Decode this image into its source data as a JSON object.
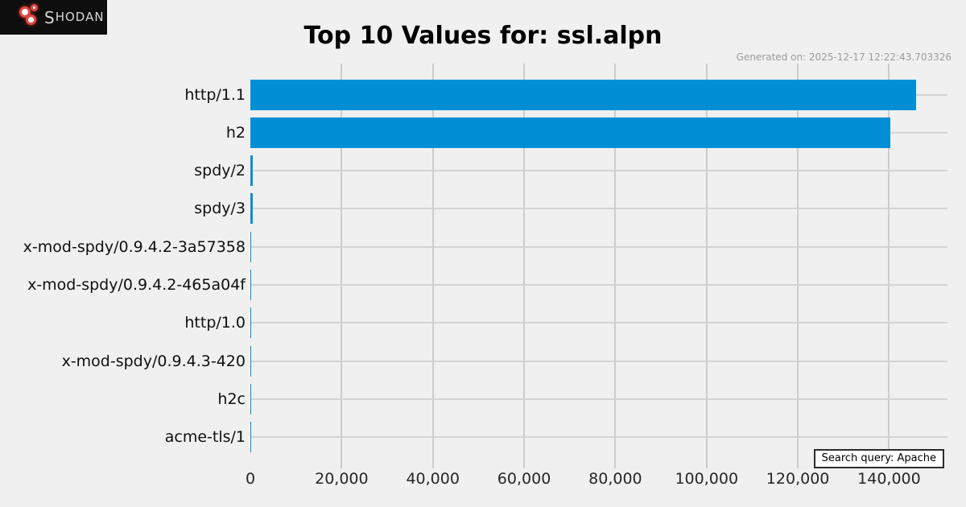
{
  "branding": {
    "logo_first": "S",
    "logo_rest": "HODAN"
  },
  "header": {
    "title": "Top 10 Values for: ssl.alpn",
    "generated_on": "Generated on: 2025-12-17 12:22:43.703326"
  },
  "footer": {
    "search_query": "Search query: Apache"
  },
  "chart_data": {
    "type": "bar",
    "orientation": "horizontal",
    "title": "Top 10 Values for: ssl.alpn",
    "categories": [
      "http/1.1",
      "h2",
      "spdy/2",
      "spdy/3",
      "x-mod-spdy/0.9.4.2-3a57358",
      "x-mod-spdy/0.9.4.2-465a04f",
      "http/1.0",
      "x-mod-spdy/0.9.4.3-420",
      "h2c",
      "acme-tls/1"
    ],
    "values": [
      145900,
      140200,
      500,
      450,
      150,
      120,
      90,
      70,
      50,
      40
    ],
    "x_ticks": [
      0,
      20000,
      40000,
      60000,
      80000,
      100000,
      120000,
      140000
    ],
    "x_tick_labels": [
      "0",
      "20,000",
      "40,000",
      "60,000",
      "80,000",
      "100,000",
      "120,000",
      "140,000"
    ],
    "xlim": [
      0,
      152800
    ],
    "grid": true,
    "legend": false,
    "colors": {
      "bar": "#008fd5",
      "background": "#f0f0f0",
      "gridline": "#cdcdcd"
    }
  }
}
